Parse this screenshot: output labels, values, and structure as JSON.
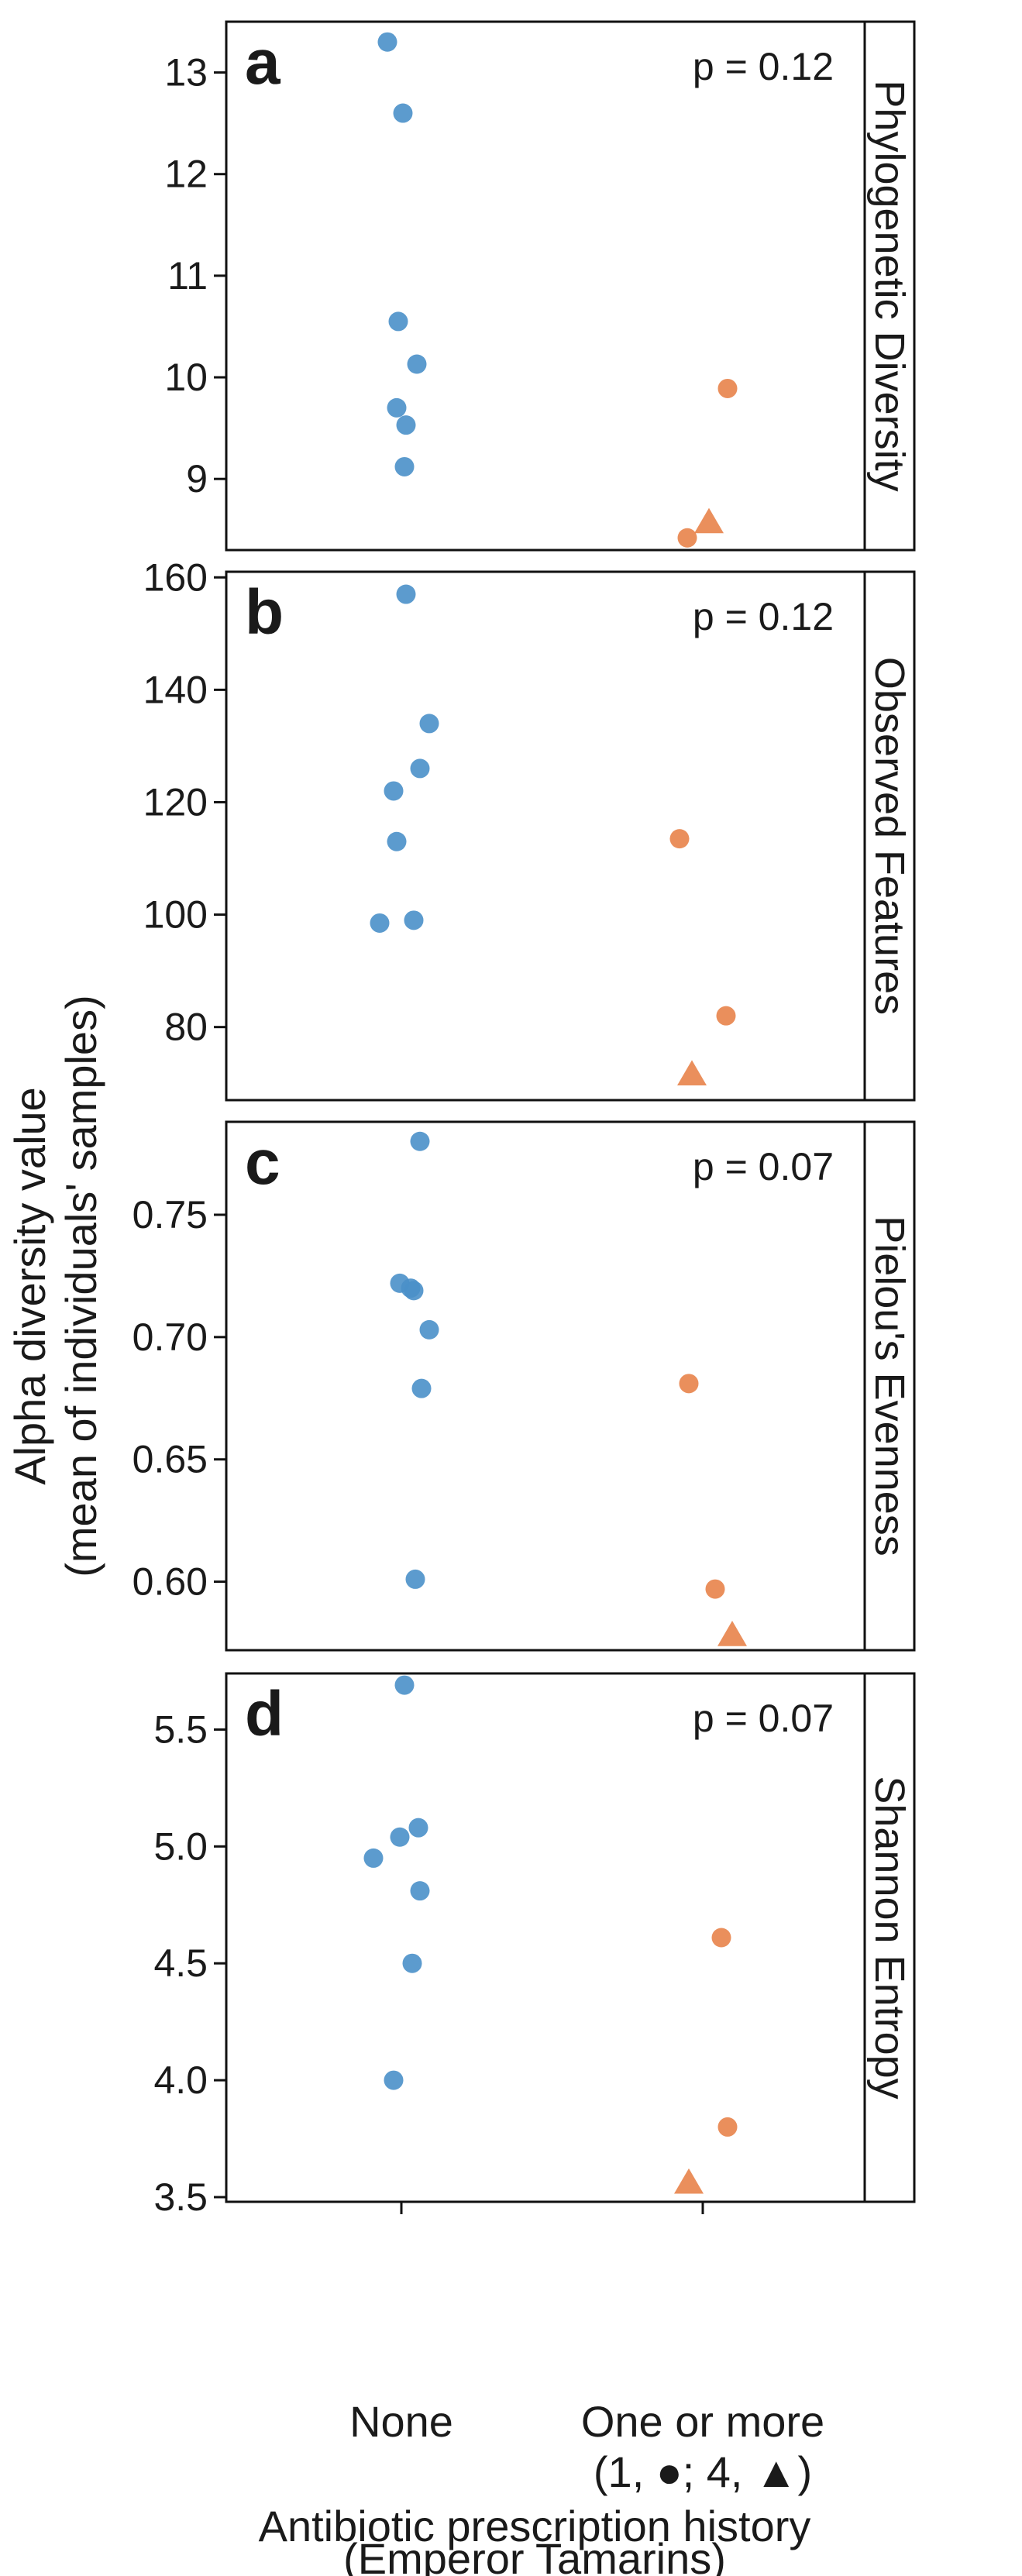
{
  "colors": {
    "none_group": "#4a90c9",
    "antibiotic_group": "#e8834a",
    "frame": "#111111",
    "background": "#ffffff"
  },
  "ylabel_line1": "Alpha diversity value",
  "ylabel_line2": "(mean of individuals' samples)",
  "xlabel_line1": "Antibiotic prescription history",
  "xlabel_line2": "(Emperor Tamarins)",
  "categories": [
    "None",
    "One or more"
  ],
  "category_sublabel": "(1, ●; 4, ▲)",
  "chart_data": [
    {
      "type": "scatter",
      "letter": "a",
      "metric": "Phylogenetic Diversity",
      "p_value": "p = 0.12",
      "ylim": [
        8.3,
        13.5
      ],
      "yticks": [
        9,
        10,
        11,
        12,
        13
      ],
      "tick_labels": [
        "9",
        "10",
        "11",
        "12",
        "13"
      ],
      "points": [
        {
          "group": "None",
          "jitter": -0.09,
          "y": 13.3,
          "shape": "circle"
        },
        {
          "group": "None",
          "jitter": 0.01,
          "y": 12.6,
          "shape": "circle"
        },
        {
          "group": "None",
          "jitter": -0.02,
          "y": 10.55,
          "shape": "circle"
        },
        {
          "group": "None",
          "jitter": 0.1,
          "y": 10.13,
          "shape": "circle"
        },
        {
          "group": "None",
          "jitter": -0.03,
          "y": 9.7,
          "shape": "circle"
        },
        {
          "group": "None",
          "jitter": 0.03,
          "y": 9.53,
          "shape": "circle"
        },
        {
          "group": "None",
          "jitter": 0.02,
          "y": 9.12,
          "shape": "circle"
        },
        {
          "group": "One or more",
          "jitter": 0.16,
          "y": 9.89,
          "shape": "circle"
        },
        {
          "group": "One or more",
          "jitter": -0.1,
          "y": 8.42,
          "shape": "circle"
        },
        {
          "group": "One or more",
          "jitter": 0.04,
          "y": 8.57,
          "shape": "triangle"
        }
      ]
    },
    {
      "type": "scatter",
      "letter": "b",
      "metric": "Observed Features",
      "p_value": "p = 0.12",
      "ylim": [
        67,
        161
      ],
      "yticks": [
        80,
        100,
        120,
        140,
        160
      ],
      "tick_labels": [
        "80",
        "100",
        "120",
        "140",
        "160"
      ],
      "points": [
        {
          "group": "None",
          "jitter": 0.03,
          "y": 157,
          "shape": "circle"
        },
        {
          "group": "None",
          "jitter": 0.18,
          "y": 134,
          "shape": "circle"
        },
        {
          "group": "None",
          "jitter": 0.12,
          "y": 126,
          "shape": "circle"
        },
        {
          "group": "None",
          "jitter": -0.05,
          "y": 122,
          "shape": "circle"
        },
        {
          "group": "None",
          "jitter": -0.03,
          "y": 113,
          "shape": "circle"
        },
        {
          "group": "None",
          "jitter": 0.08,
          "y": 99,
          "shape": "circle"
        },
        {
          "group": "None",
          "jitter": -0.14,
          "y": 98.5,
          "shape": "circle"
        },
        {
          "group": "One or more",
          "jitter": -0.15,
          "y": 113.5,
          "shape": "circle"
        },
        {
          "group": "One or more",
          "jitter": 0.15,
          "y": 82,
          "shape": "circle"
        },
        {
          "group": "One or more",
          "jitter": -0.07,
          "y": 71.5,
          "shape": "triangle"
        }
      ]
    },
    {
      "type": "scatter",
      "letter": "c",
      "metric": "Pielou's Evenness",
      "p_value": "p = 0.07",
      "ylim": [
        0.572,
        0.788
      ],
      "yticks": [
        0.6,
        0.65,
        0.7,
        0.75
      ],
      "tick_labels": [
        "0.60",
        "0.65",
        "0.70",
        "0.75"
      ],
      "points": [
        {
          "group": "None",
          "jitter": 0.12,
          "y": 0.78,
          "shape": "circle"
        },
        {
          "group": "None",
          "jitter": -0.01,
          "y": 0.722,
          "shape": "circle"
        },
        {
          "group": "None",
          "jitter": 0.06,
          "y": 0.72,
          "shape": "circle"
        },
        {
          "group": "None",
          "jitter": 0.08,
          "y": 0.719,
          "shape": "circle"
        },
        {
          "group": "None",
          "jitter": 0.18,
          "y": 0.703,
          "shape": "circle"
        },
        {
          "group": "None",
          "jitter": 0.13,
          "y": 0.679,
          "shape": "circle"
        },
        {
          "group": "None",
          "jitter": 0.09,
          "y": 0.601,
          "shape": "circle"
        },
        {
          "group": "One or more",
          "jitter": -0.09,
          "y": 0.681,
          "shape": "circle"
        },
        {
          "group": "One or more",
          "jitter": 0.08,
          "y": 0.597,
          "shape": "circle"
        },
        {
          "group": "One or more",
          "jitter": 0.19,
          "y": 0.578,
          "shape": "triangle"
        }
      ]
    },
    {
      "type": "scatter",
      "letter": "d",
      "metric": "Shannon Entropy",
      "p_value": "p = 0.07",
      "ylim": [
        3.48,
        5.74
      ],
      "yticks": [
        3.5,
        4.0,
        4.5,
        5.0,
        5.5
      ],
      "tick_labels": [
        "3.5",
        "4.0",
        "4.5",
        "5.0",
        "5.5"
      ],
      "points": [
        {
          "group": "None",
          "jitter": 0.02,
          "y": 5.69,
          "shape": "circle"
        },
        {
          "group": "None",
          "jitter": 0.11,
          "y": 5.08,
          "shape": "circle"
        },
        {
          "group": "None",
          "jitter": -0.01,
          "y": 5.04,
          "shape": "circle"
        },
        {
          "group": "None",
          "jitter": -0.18,
          "y": 4.95,
          "shape": "circle"
        },
        {
          "group": "None",
          "jitter": 0.12,
          "y": 4.81,
          "shape": "circle"
        },
        {
          "group": "None",
          "jitter": 0.07,
          "y": 4.5,
          "shape": "circle"
        },
        {
          "group": "None",
          "jitter": -0.05,
          "y": 4.0,
          "shape": "circle"
        },
        {
          "group": "One or more",
          "jitter": 0.12,
          "y": 4.61,
          "shape": "circle"
        },
        {
          "group": "One or more",
          "jitter": 0.16,
          "y": 3.8,
          "shape": "circle"
        },
        {
          "group": "One or more",
          "jitter": -0.09,
          "y": 3.56,
          "shape": "triangle"
        }
      ]
    }
  ]
}
